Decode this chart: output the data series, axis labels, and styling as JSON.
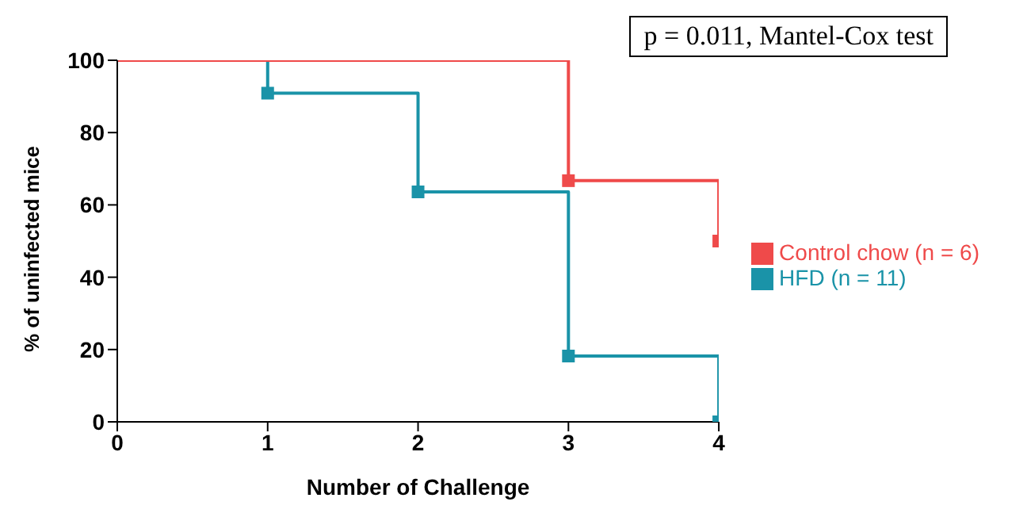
{
  "chart_data": {
    "type": "step",
    "xlabel": "Number of Challenge",
    "ylabel": "% of uninfected mice",
    "annotations": [
      "p = 0.011, Mantel-Cox test"
    ],
    "series": [
      {
        "name": "HFD (n = 11)",
        "color": "#1a93a8",
        "x": [
          0,
          1,
          2,
          3,
          4
        ],
        "values": [
          100,
          90.9,
          63.6,
          18.2,
          0
        ]
      },
      {
        "name": "Control chow (n = 6)",
        "color": "#ef4a4a",
        "x": [
          0,
          3,
          4
        ],
        "values": [
          100,
          66.7,
          50
        ]
      }
    ],
    "xlim": [
      0,
      4
    ],
    "xticks": [
      0,
      1,
      2,
      3,
      4
    ],
    "ylim": [
      0,
      100
    ],
    "yticks": [
      0,
      20,
      40,
      60,
      80,
      100
    ],
    "grid": false,
    "legend": "right",
    "marker": "square",
    "line_style": "solid"
  }
}
